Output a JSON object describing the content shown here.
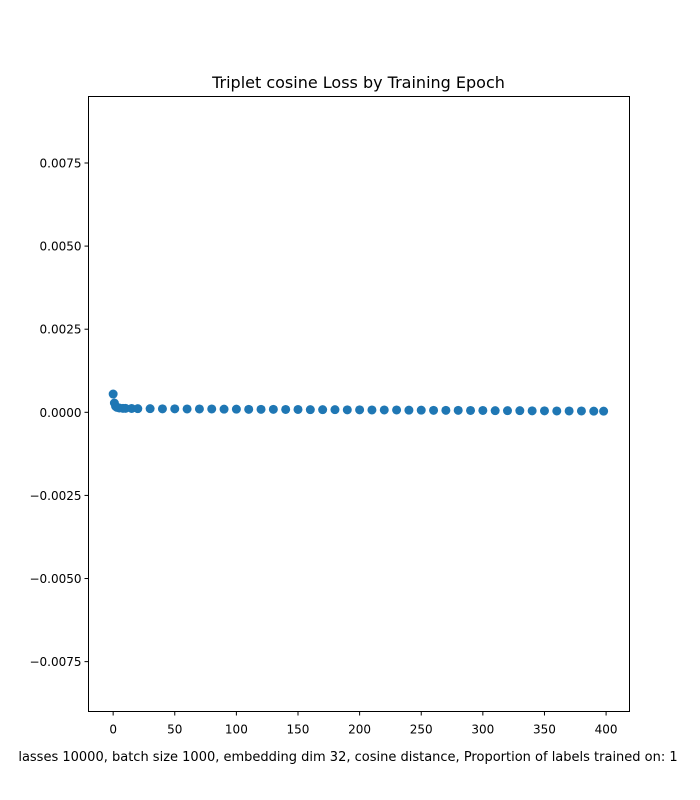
{
  "chart_data": {
    "type": "scatter",
    "title": "Triplet cosine Loss by Training Epoch",
    "xlabel": "lasses 10000, batch size 1000, embedding dim 32, cosine distance, Proportion of labels trained on: 1",
    "ylabel": "",
    "xlim": [
      -20,
      419
    ],
    "ylim": [
      -0.009,
      0.0095
    ],
    "xticks": [
      {
        "value": 0,
        "label": "0"
      },
      {
        "value": 50,
        "label": "50"
      },
      {
        "value": 100,
        "label": "100"
      },
      {
        "value": 150,
        "label": "150"
      },
      {
        "value": 200,
        "label": "200"
      },
      {
        "value": 250,
        "label": "250"
      },
      {
        "value": 300,
        "label": "300"
      },
      {
        "value": 350,
        "label": "350"
      },
      {
        "value": 400,
        "label": "400"
      }
    ],
    "yticks": [
      {
        "value": 0.0075,
        "label": "0.0075"
      },
      {
        "value": 0.005,
        "label": "0.0050"
      },
      {
        "value": 0.0025,
        "label": "0.0025"
      },
      {
        "value": 0.0,
        "label": "0.0000"
      },
      {
        "value": -0.0025,
        "label": "−0.0025"
      },
      {
        "value": -0.005,
        "label": "−0.0050"
      },
      {
        "value": -0.0075,
        "label": "−0.0075"
      }
    ],
    "grid": false,
    "series": [
      {
        "color": "#1f77b4",
        "x": [
          0,
          1,
          2,
          3,
          5,
          8,
          10,
          15,
          20,
          30,
          40,
          50,
          60,
          70,
          80,
          90,
          100,
          110,
          120,
          130,
          140,
          150,
          160,
          170,
          180,
          190,
          200,
          210,
          220,
          230,
          240,
          250,
          260,
          270,
          280,
          290,
          300,
          310,
          320,
          330,
          340,
          350,
          360,
          370,
          380,
          390,
          398
        ],
        "y": [
          0.00055,
          0.00028,
          0.00018,
          0.00015,
          0.00013,
          0.00012,
          0.00012,
          0.000115,
          0.00011,
          0.00011,
          0.000105,
          0.000105,
          0.0001,
          0.0001,
          0.0001,
          9.5e-05,
          9.5e-05,
          9e-05,
          9e-05,
          9e-05,
          8.5e-05,
          8.5e-05,
          8e-05,
          8e-05,
          8e-05,
          7.5e-05,
          7.5e-05,
          7e-05,
          7e-05,
          7e-05,
          6.5e-05,
          6.5e-05,
          6e-05,
          6e-05,
          6e-05,
          5.5e-05,
          5.5e-05,
          5e-05,
          5e-05,
          5e-05,
          4.5e-05,
          4.5e-05,
          4e-05,
          4e-05,
          4e-05,
          3.5e-05,
          3.5e-05
        ]
      }
    ]
  }
}
